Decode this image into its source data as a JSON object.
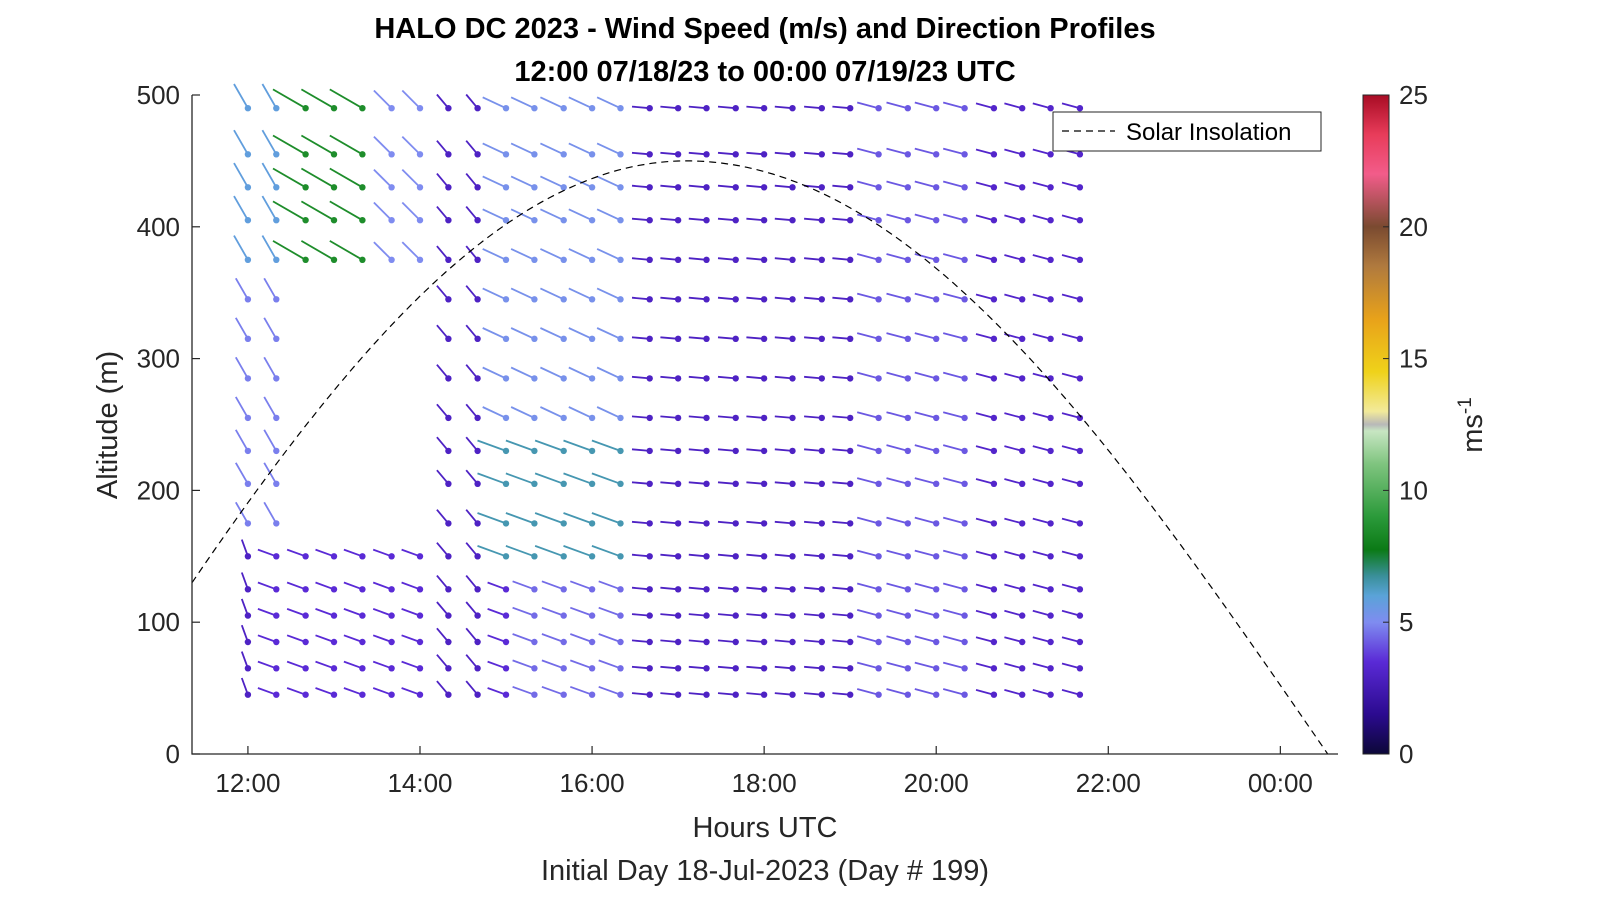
{
  "chart_data": {
    "type": "wind-barb-profile",
    "title": "HALO DC 2023 - Wind Speed (m/s) and Direction Profiles",
    "subtitle": "12:00 07/18/23 to 00:00 07/19/23  UTC",
    "xlabel": "Hours UTC",
    "xlabel2": "Initial Day 18-Jul-2023 (Day # 199)",
    "ylabel": "Altitude (m)",
    "xlim_hours": [
      11.35,
      24.67
    ],
    "ylim": [
      0,
      500
    ],
    "x_ticks": [
      {
        "value": 12,
        "label": "12:00"
      },
      {
        "value": 14,
        "label": "14:00"
      },
      {
        "value": 16,
        "label": "16:00"
      },
      {
        "value": 18,
        "label": "18:00"
      },
      {
        "value": 20,
        "label": "20:00"
      },
      {
        "value": 22,
        "label": "22:00"
      },
      {
        "value": 24,
        "label": "00:00"
      }
    ],
    "y_ticks": [
      0,
      100,
      200,
      300,
      400,
      500
    ],
    "colorbar": {
      "label_base": "ms",
      "label_exp": "-1",
      "range": [
        0,
        25
      ],
      "ticks": [
        0,
        5,
        10,
        15,
        20,
        25
      ]
    },
    "legend": {
      "entries": [
        "Solar Insolation"
      ],
      "position": "top-right"
    },
    "solar_insolation": {
      "peak_hour": 17.1,
      "peak_altitude": 450,
      "zero_hour": 24.55,
      "left_edge_altitude": 130
    },
    "times_hours": [
      12.0,
      12.33,
      12.67,
      13.0,
      13.33,
      13.67,
      14.0,
      14.33,
      14.67,
      15.0,
      15.33,
      15.67,
      16.0,
      16.33,
      16.67,
      17.0,
      17.33,
      17.67,
      18.0,
      18.33,
      18.67,
      19.0,
      19.33,
      19.67,
      20.0,
      20.33,
      20.67,
      21.0,
      21.33,
      21.67
    ],
    "altitudes_m": [
      45,
      65,
      85,
      105,
      125,
      150,
      175,
      205,
      230,
      255,
      285,
      315,
      345,
      375,
      405,
      430,
      455,
      490
    ],
    "wind": [
      {
        "hours": [
          12.0,
          13.67
        ],
        "alt": [
          45,
          150
        ],
        "dir": 340,
        "speed": 3.0
      },
      {
        "hours": [
          12.33,
          15.0
        ],
        "alt": [
          45,
          150
        ],
        "dir": 290,
        "speed": 3.5
      },
      {
        "hours": [
          15.33,
          16.67
        ],
        "alt": [
          45,
          125
        ],
        "dir": 290,
        "speed": 4.5
      },
      {
        "hours": [
          15.0,
          16.33
        ],
        "alt": [
          150,
          230
        ],
        "dir": 290,
        "speed": 6.5
      },
      {
        "hours": [
          12.0,
          12.33
        ],
        "alt": [
          175,
          345
        ],
        "dir": 330,
        "speed": 4.8
      },
      {
        "hours": [
          12.0,
          12.67
        ],
        "alt": [
          375,
          490
        ],
        "dir": 330,
        "speed": 5.8
      },
      {
        "hours": [
          12.67,
          13.33
        ],
        "alt": [
          375,
          490
        ],
        "dir": 300,
        "speed": 8.5
      },
      {
        "hours": [
          13.67,
          14.33
        ],
        "alt": [
          375,
          490
        ],
        "dir": 315,
        "speed": 5.0
      },
      {
        "hours": [
          14.33,
          14.67
        ],
        "alt": [
          45,
          490
        ],
        "dir": 320,
        "speed": 3.0
      },
      {
        "hours": [
          15.0,
          16.33
        ],
        "alt": [
          255,
          490
        ],
        "dir": 295,
        "speed": 5.2
      },
      {
        "hours": [
          16.67,
          19.0
        ],
        "alt": [
          45,
          490
        ],
        "dir": 275,
        "speed": 3.0
      },
      {
        "hours": [
          19.33,
          20.33
        ],
        "alt": [
          45,
          490
        ],
        "dir": 285,
        "speed": 4.2
      },
      {
        "hours": [
          20.67,
          21.67
        ],
        "alt": [
          45,
          490
        ],
        "dir": 285,
        "speed": 3.2
      }
    ]
  }
}
